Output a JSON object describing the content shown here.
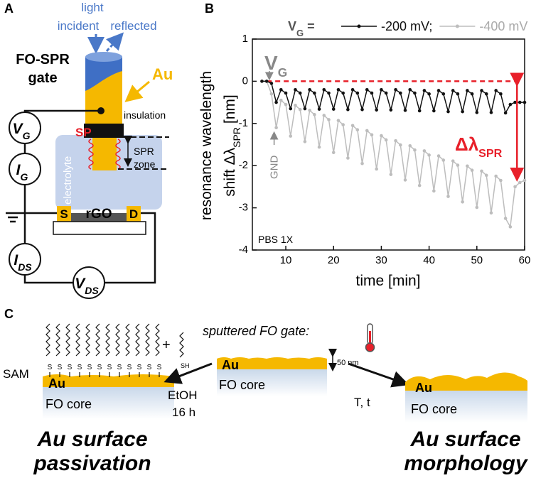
{
  "panel_a": {
    "label": "A",
    "light": "light",
    "incident": "incident",
    "reflected": "reflected",
    "gate_title": [
      "FO-SPR",
      "gate"
    ],
    "au": "Au",
    "insulation": "insulation",
    "sp": "SP",
    "spr_zone": [
      "SPR",
      "zone"
    ],
    "electrolyte": "electrolyte",
    "vg": {
      "main": "V",
      "sub": "G"
    },
    "ig": {
      "main": "I",
      "sub": "G"
    },
    "ids": {
      "main": "I",
      "sub": "DS"
    },
    "vds": {
      "main": "V",
      "sub": "DS"
    },
    "source": "S",
    "channel": "rGO",
    "drain": "D"
  },
  "chart_data": {
    "type": "line",
    "panel_label": "B",
    "legend_prefix": {
      "main": "V",
      "sub": "G",
      "eq": "="
    },
    "legend_separator": ";",
    "ylabel": [
      "resonance wavelength",
      {
        "main": "shift Δλ",
        "sub": "SPR",
        "unit": "[nm]"
      }
    ],
    "xlabel": "time [min]",
    "xlim": [
      3,
      60
    ],
    "ylim": [
      -4,
      1
    ],
    "xticks": [
      10,
      20,
      30,
      40,
      50,
      60
    ],
    "yticks": [
      -4,
      -3,
      -2,
      -1,
      0,
      1
    ],
    "x": [
      5,
      6,
      7,
      8,
      9,
      10,
      11,
      12,
      13,
      14,
      15,
      16,
      17,
      18,
      19,
      20,
      21,
      22,
      23,
      24,
      25,
      26,
      27,
      28,
      29,
      30,
      31,
      32,
      33,
      34,
      35,
      36,
      37,
      38,
      39,
      40,
      41,
      42,
      43,
      44,
      45,
      46,
      47,
      48,
      49,
      50,
      51,
      52,
      53,
      54,
      55,
      56,
      57,
      58,
      59,
      60
    ],
    "series": [
      {
        "name": "-200 mV",
        "color": "#111111",
        "values": [
          0,
          0,
          -0.05,
          -0.5,
          -0.2,
          -0.28,
          -0.65,
          -0.2,
          -0.28,
          -0.65,
          -0.2,
          -0.28,
          -0.66,
          -0.2,
          -0.28,
          -0.66,
          -0.2,
          -0.28,
          -0.67,
          -0.2,
          -0.28,
          -0.67,
          -0.2,
          -0.28,
          -0.68,
          -0.2,
          -0.28,
          -0.68,
          -0.2,
          -0.28,
          -0.69,
          -0.2,
          -0.28,
          -0.7,
          -0.22,
          -0.3,
          -0.7,
          -0.22,
          -0.3,
          -0.72,
          -0.22,
          -0.3,
          -0.72,
          -0.22,
          -0.3,
          -0.74,
          -0.22,
          -0.3,
          -0.74,
          -0.22,
          -0.3,
          -0.75,
          -0.55,
          -0.5,
          -0.5,
          -0.5
        ]
      },
      {
        "name": "-400 mV",
        "color": "#bdbdbd",
        "values": [
          0,
          0,
          -0.3,
          -1.1,
          -0.45,
          -0.55,
          -1.3,
          -0.57,
          -0.67,
          -1.43,
          -0.69,
          -0.79,
          -1.56,
          -0.81,
          -0.91,
          -1.69,
          -0.93,
          -1.03,
          -1.82,
          -1.05,
          -1.15,
          -1.95,
          -1.17,
          -1.27,
          -2.08,
          -1.29,
          -1.39,
          -2.21,
          -1.41,
          -1.51,
          -2.34,
          -1.53,
          -1.63,
          -2.47,
          -1.65,
          -1.75,
          -2.6,
          -1.77,
          -1.87,
          -2.73,
          -1.89,
          -1.99,
          -2.86,
          -2.01,
          -2.11,
          -2.99,
          -2.13,
          -2.23,
          -3.12,
          -2.25,
          -2.35,
          -3.25,
          -3.45,
          -2.5,
          -2.4,
          -2.35
        ]
      }
    ],
    "annotations": {
      "vg": {
        "main": "V",
        "sub": "G"
      },
      "gnd": "GND",
      "delta": {
        "main": "Δλ",
        "sub": "SPR"
      },
      "buffer": "PBS 1X"
    }
  },
  "panel_c": {
    "label": "C",
    "sam": "SAM",
    "plus": "+",
    "thiol": "SH",
    "s_labels": [
      "S",
      "S",
      "S",
      "S",
      "S",
      "S",
      "S",
      "S",
      "S",
      "S",
      "S",
      "S"
    ],
    "sputtered": "sputtered FO gate:",
    "au": "Au",
    "core": "FO core",
    "thickness": "50 nm",
    "etoh": "EtOH",
    "time": "16 h",
    "tt": "T, t",
    "left_title": [
      "Au surface",
      "passivation"
    ],
    "right_title": [
      "Au surface",
      "morphology"
    ]
  }
}
